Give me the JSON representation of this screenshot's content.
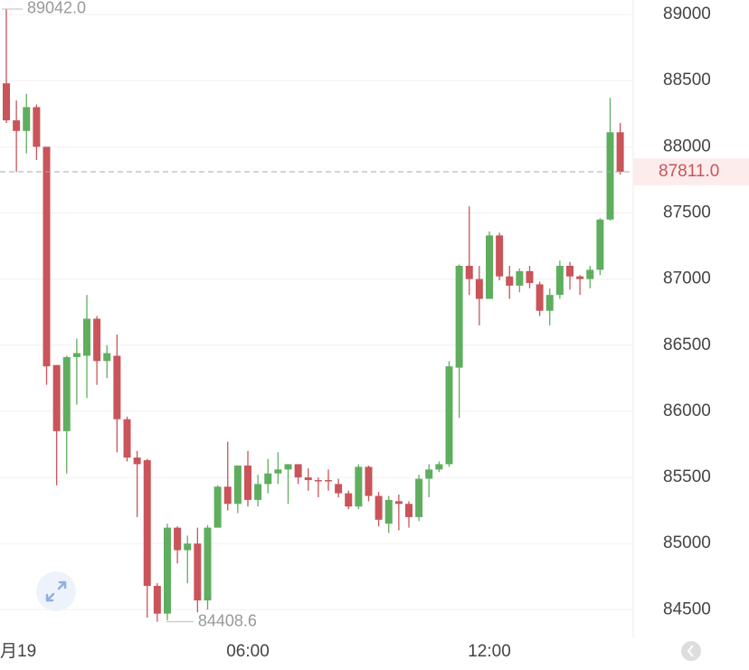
{
  "chart_data": {
    "type": "candlestick",
    "categories": [
      "月19",
      null,
      null,
      null,
      null,
      null,
      null,
      null,
      null,
      null,
      null,
      null,
      null,
      null,
      null,
      null,
      null,
      null,
      null,
      null,
      null,
      null,
      null,
      null,
      "06:00",
      null,
      null,
      null,
      null,
      null,
      null,
      null,
      null,
      null,
      null,
      null,
      null,
      null,
      null,
      null,
      null,
      null,
      null,
      null,
      null,
      null,
      null,
      null,
      "12:00",
      null,
      null,
      null,
      null,
      null,
      null,
      null,
      null,
      null,
      null,
      null,
      null,
      null
    ],
    "open": [
      88480,
      88200,
      88120,
      88300,
      88000,
      86350,
      85850,
      86410,
      86420,
      86700,
      86380,
      86420,
      85940,
      85650,
      85630,
      84680,
      84470,
      85120,
      84950,
      85000,
      84570,
      85120,
      85430,
      85300,
      85590,
      85330,
      85450,
      85530,
      85560,
      85600,
      85500,
      85480,
      85480,
      85450,
      85380,
      85280,
      85580,
      85360,
      85150,
      85320,
      85300,
      85200,
      85490,
      85560,
      85600,
      86330,
      87100,
      87000,
      86850,
      87330,
      87020,
      86950,
      87060,
      86960,
      86760,
      86880,
      87100,
      87020,
      87000,
      87070,
      87450,
      88110
    ],
    "high": [
      89042,
      88350,
      88400,
      88320,
      88000,
      86350,
      86420,
      86550,
      86880,
      86720,
      86500,
      86580,
      85960,
      85700,
      85640,
      84700,
      85150,
      85130,
      85060,
      85120,
      85140,
      85440,
      85770,
      85590,
      85700,
      85520,
      85640,
      85690,
      85600,
      85600,
      85570,
      85500,
      85560,
      85490,
      85400,
      85600,
      85590,
      85390,
      85360,
      85370,
      85320,
      85520,
      85600,
      85620,
      86380,
      87110,
      87550,
      87100,
      87360,
      87350,
      87100,
      87080,
      87100,
      86980,
      86930,
      87140,
      87130,
      87030,
      87100,
      87460,
      88370,
      88180
    ],
    "low": [
      88180,
      87810,
      87950,
      87900,
      86200,
      85440,
      85530,
      86050,
      86100,
      86200,
      86250,
      85690,
      85620,
      85200,
      84440,
      84408.6,
      84420,
      84850,
      84700,
      84480,
      84500,
      85120,
      85250,
      85230,
      85280,
      85280,
      85380,
      85450,
      85300,
      85450,
      85400,
      85350,
      85400,
      85350,
      85260,
      85260,
      85320,
      85130,
      85080,
      85100,
      85120,
      85170,
      85350,
      85540,
      85580,
      85950,
      86880,
      86650,
      86850,
      86990,
      86850,
      86900,
      86930,
      86720,
      86650,
      86850,
      86920,
      86880,
      86930,
      87030,
      87440,
      87790
    ],
    "close": [
      88200,
      88120,
      88300,
      88000,
      86340,
      85850,
      86410,
      86440,
      86700,
      86380,
      86440,
      85940,
      85650,
      85600,
      84680,
      84470,
      85120,
      84950,
      85000,
      84570,
      85120,
      85430,
      85300,
      85590,
      85330,
      85450,
      85530,
      85560,
      85600,
      85500,
      85480,
      85470,
      85470,
      85380,
      85280,
      85580,
      85360,
      85180,
      85330,
      85300,
      85200,
      85490,
      85560,
      85600,
      86340,
      87100,
      87000,
      86850,
      87330,
      87020,
      86950,
      87060,
      86970,
      86760,
      86880,
      87100,
      87020,
      87000,
      87070,
      87450,
      88110,
      87811
    ],
    "up_color": "#5fae5f",
    "down_color": "#c9545a",
    "ylim": [
      84290,
      89110
    ],
    "yticks": [
      84500,
      85000,
      85500,
      86000,
      86500,
      87000,
      87500,
      88000,
      88500,
      89000
    ],
    "grid": true,
    "max_marker": {
      "value": 89042,
      "label": "89042.0"
    },
    "min_marker": {
      "value": 84408.6,
      "label": "84408.6"
    },
    "last_price": {
      "value": 87811,
      "label": "87811.0"
    }
  }
}
